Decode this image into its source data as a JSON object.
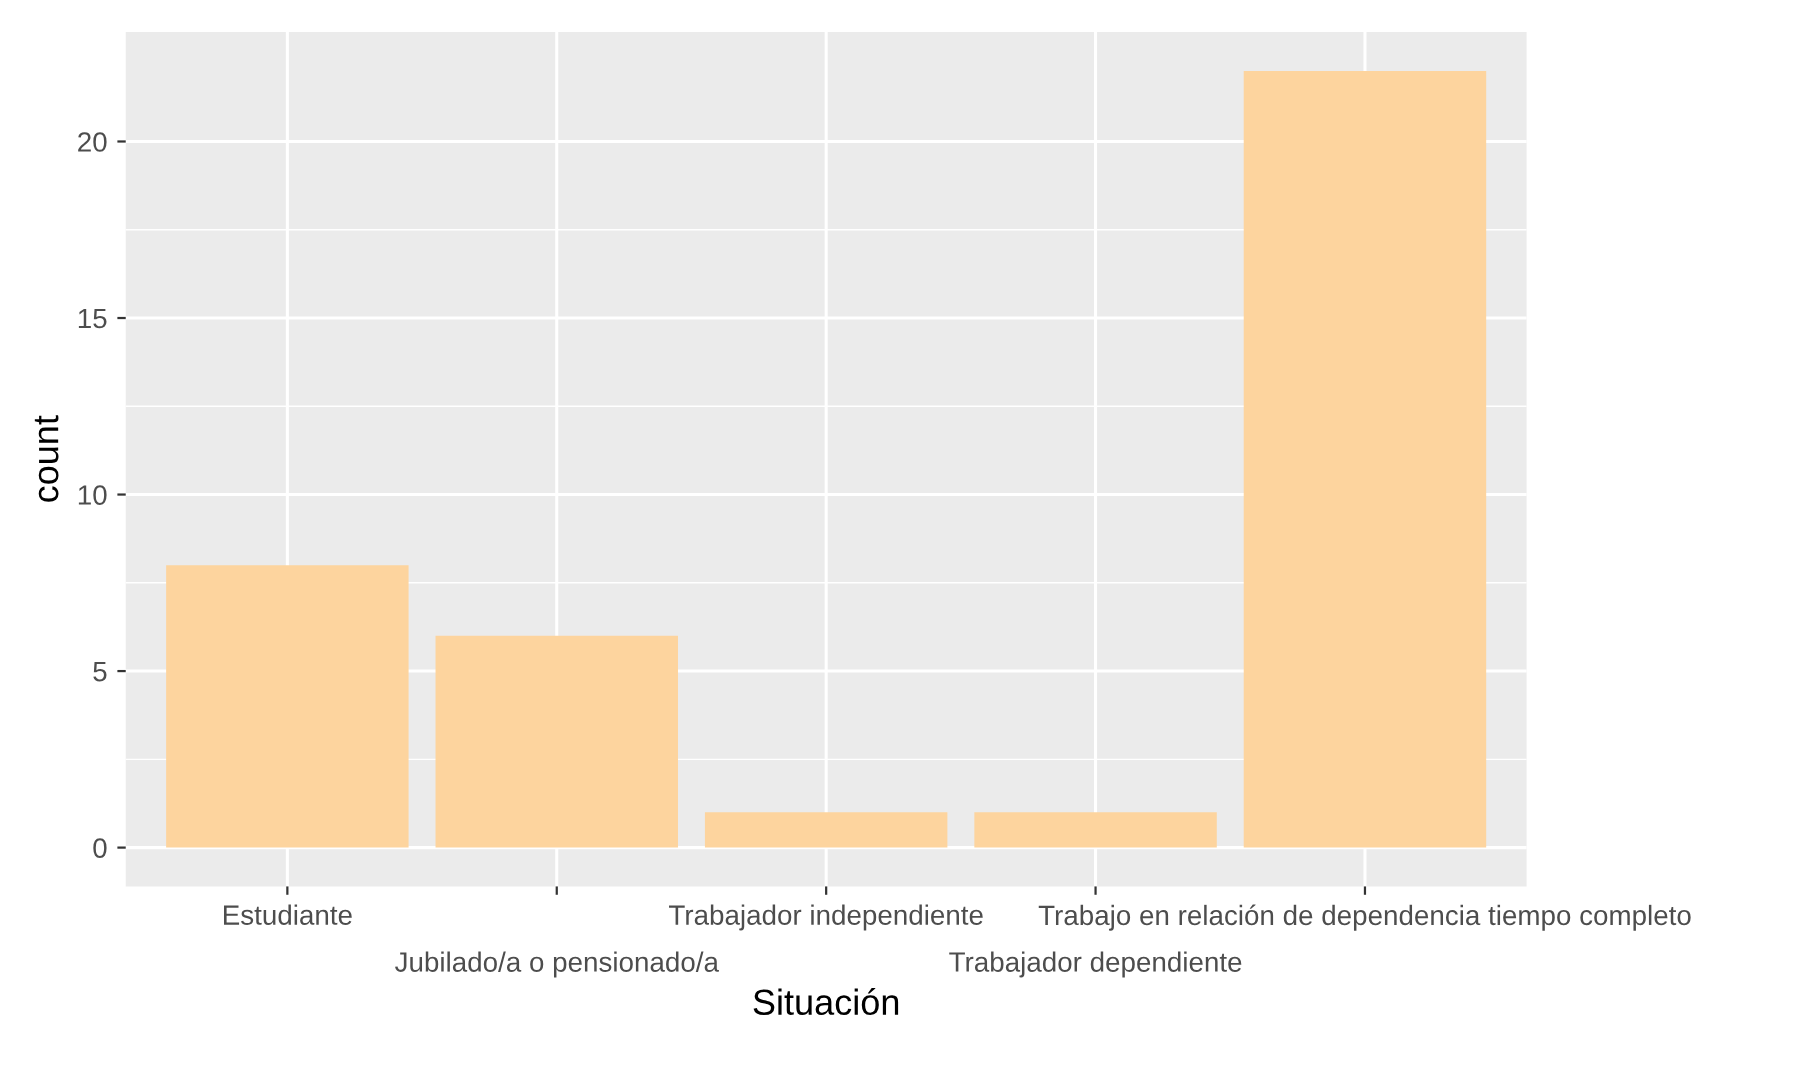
{
  "chart_data": {
    "type": "bar",
    "xlabel": "Situación",
    "ylabel": "count",
    "categories": [
      "Estudiante",
      "Jubilado/a o pensionado/a",
      "Trabajador independiente",
      "Trabajador dependiente",
      "Trabajo en relación de dependencia tiempo completo"
    ],
    "values": [
      8,
      6,
      1,
      1,
      22
    ],
    "color": "#fdd49e",
    "ylim": [
      -1.1,
      23.1
    ],
    "yticks": [
      0,
      5,
      10,
      15,
      20
    ],
    "grid": true
  }
}
